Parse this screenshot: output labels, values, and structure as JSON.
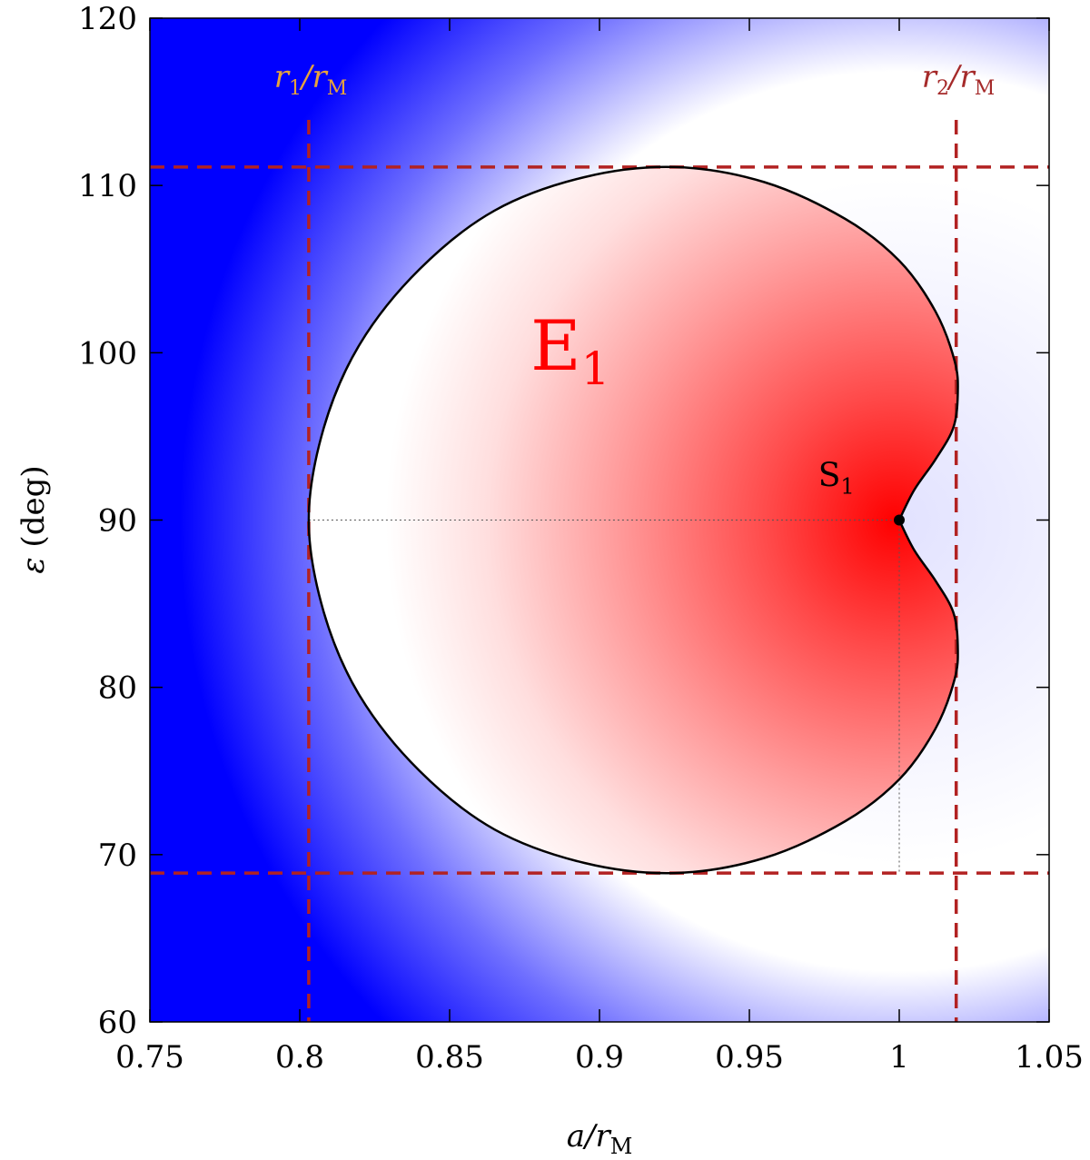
{
  "chart_data": {
    "type": "heatmap",
    "x": {
      "label_base": "a/r",
      "label_sub": "M",
      "lim": [
        0.75,
        1.05
      ],
      "ticks": [
        0.75,
        0.8,
        0.85,
        0.9,
        0.95,
        1,
        1.05
      ],
      "tick_labels": [
        "0.75",
        "0.8",
        "0.85",
        "0.9",
        "0.95",
        "1",
        "1.05"
      ]
    },
    "y": {
      "label_symbol": "ε",
      "label_unit": "(deg)",
      "lim": [
        60,
        120
      ],
      "ticks": [
        60,
        70,
        80,
        90,
        100,
        110,
        120
      ],
      "tick_labels": [
        "60",
        "70",
        "80",
        "90",
        "100",
        "110",
        "120"
      ]
    },
    "colors": {
      "negative": "#0000ff",
      "zero": "#ffffff",
      "positive": "#ff0000",
      "contour": "#000000",
      "reference_lines": "#b22222",
      "r1_label": "#e6a23c",
      "r2_label": "#a52a2a"
    },
    "grid": false,
    "reference_lines": {
      "vertical": [
        {
          "x": 0.803,
          "label": "r1/rM",
          "label_base": "r",
          "label_num": "1",
          "label_div": "/r",
          "label_sub": "M"
        },
        {
          "x": 1.019,
          "label": "r2/rM",
          "label_base": "r",
          "label_num": "2",
          "label_div": "/r",
          "label_sub": "M"
        }
      ],
      "horizontal": [
        111.1,
        68.9
      ]
    },
    "contour_E1": [
      {
        "x": 1.0,
        "y": 90.0
      },
      {
        "x": 1.005,
        "y": 91.8
      },
      {
        "x": 1.012,
        "y": 93.6
      },
      {
        "x": 1.018,
        "y": 95.5
      },
      {
        "x": 1.0195,
        "y": 97.5
      },
      {
        "x": 1.0185,
        "y": 99.5
      },
      {
        "x": 1.012,
        "y": 102.5
      },
      {
        "x": 1.0,
        "y": 105.5
      },
      {
        "x": 0.982,
        "y": 108.0
      },
      {
        "x": 0.955,
        "y": 110.2
      },
      {
        "x": 0.925,
        "y": 111.1
      },
      {
        "x": 0.895,
        "y": 110.5
      },
      {
        "x": 0.865,
        "y": 108.5
      },
      {
        "x": 0.84,
        "y": 105.0
      },
      {
        "x": 0.82,
        "y": 100.5
      },
      {
        "x": 0.808,
        "y": 95.5
      },
      {
        "x": 0.803,
        "y": 90.0
      },
      {
        "x": 0.808,
        "y": 84.5
      },
      {
        "x": 0.82,
        "y": 79.5
      },
      {
        "x": 0.84,
        "y": 75.0
      },
      {
        "x": 0.865,
        "y": 71.5
      },
      {
        "x": 0.895,
        "y": 69.5
      },
      {
        "x": 0.925,
        "y": 68.9
      },
      {
        "x": 0.955,
        "y": 69.8
      },
      {
        "x": 0.982,
        "y": 72.0
      },
      {
        "x": 1.0,
        "y": 74.5
      },
      {
        "x": 1.012,
        "y": 77.5
      },
      {
        "x": 1.0185,
        "y": 80.5
      },
      {
        "x": 1.0195,
        "y": 82.5
      },
      {
        "x": 1.018,
        "y": 84.5
      },
      {
        "x": 1.012,
        "y": 86.4
      },
      {
        "x": 1.005,
        "y": 88.2
      },
      {
        "x": 1.0,
        "y": 90.0
      }
    ],
    "annotations": [
      {
        "text_base": "E",
        "text_sub": "1",
        "x": 0.877,
        "y": 99.0,
        "color": "#ff0000"
      },
      {
        "text_base": "S",
        "text_sub": "1",
        "x": 0.979,
        "y": 92.0,
        "color": "#000000"
      }
    ],
    "saddle_point": {
      "x": 1.0,
      "y": 90.0
    },
    "dotted_guides": {
      "y": 90.0,
      "x": 1.0
    }
  }
}
